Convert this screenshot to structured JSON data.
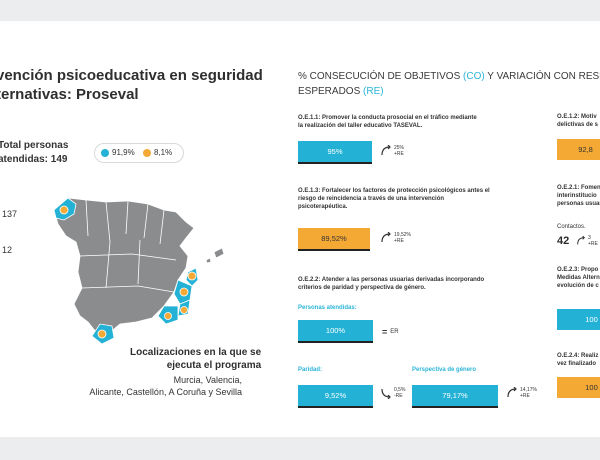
{
  "page": {
    "title_lines": [
      "vención psicoeducativa en seguridad",
      "ternativas: Proseval"
    ],
    "total_lines": [
      "Total personas",
      "atendidas: 149"
    ],
    "legend": [
      {
        "label": "91,9%",
        "color": "#23b2d5"
      },
      {
        "label": "8,1%",
        "color": "#f4a935"
      }
    ],
    "side_numbers": [
      "137",
      "12"
    ],
    "locations_title": [
      "Localizaciones en la que se",
      "ejecuta el programa"
    ],
    "locations_text": [
      "Murcia, Valencia,",
      "Alicante, Castellón, A Coruña y Sevilla"
    ]
  },
  "results": {
    "heading_line1_pre": "% CONSECUCIÓN DE OBJETIVOS ",
    "heading_co": "(CO)",
    "heading_line1_post": " Y VARIACIÓN CON RESPECT",
    "heading_line2_pre": "ESPERADOS ",
    "heading_re": "(RE)",
    "oe111": {
      "lines": [
        "O.E.1.1: Promover la conducta prosocial en el tráfico mediante",
        "la realización del taller educativo TASEVAL."
      ],
      "value": "95%",
      "var_top": "25%",
      "var_bottom": "+RE",
      "icon": "arrow-up-icon"
    },
    "oe113": {
      "lines": [
        "O.E.1.3: Fortalecer los factores de protección psicológicos antes el",
        "riesgo de reincidencia a través de una intervención",
        "psicoterapéutica."
      ],
      "value": "89,52%",
      "var_top": "19,52%",
      "var_bottom": "+RE",
      "icon": "arrow-up-icon"
    },
    "oe222": {
      "lines": [
        "O.E.2.2: Atender a las personas usuarias derivadas incorporando",
        "criterios de paridad y perspectiva de género."
      ]
    },
    "atendidas": {
      "label": "Personas atendidas:",
      "value": "100%",
      "equal": "=",
      "er": "ER"
    },
    "paridad": {
      "label": "Paridad:",
      "value": "9,52%",
      "var_top": "0,5%",
      "var_bottom": "-RE",
      "icon": "arrow-down-icon"
    },
    "perspectiva": {
      "label": "Perspectiva de género",
      "value": "79,17%",
      "var_top": "14,17%",
      "var_bottom": "+RE",
      "icon": "arrow-up-icon"
    },
    "oe112": {
      "lines": [
        "O.E.1.2: Motiv",
        "delictivas de s"
      ],
      "value": "92,8"
    },
    "oe121": {
      "lines": [
        "O.E.2.1: Fomen",
        "interinstitucio",
        "personas usuari"
      ]
    },
    "contactos": {
      "label": "Contactos.",
      "value": "42",
      "var_top": "3",
      "var_bottom": "+RE"
    },
    "oe223": {
      "lines": [
        "O.E.2.3: Propo",
        "Medidas Altern",
        "evolución de c"
      ],
      "value": "100"
    },
    "oe224": {
      "lines": [
        "O.E.2.4: Realiz",
        "vez finalizado"
      ],
      "value": "100"
    }
  },
  "colors": {
    "blue": "#23b2d5",
    "orange": "#f4a935",
    "map": "#8a8c8e"
  }
}
